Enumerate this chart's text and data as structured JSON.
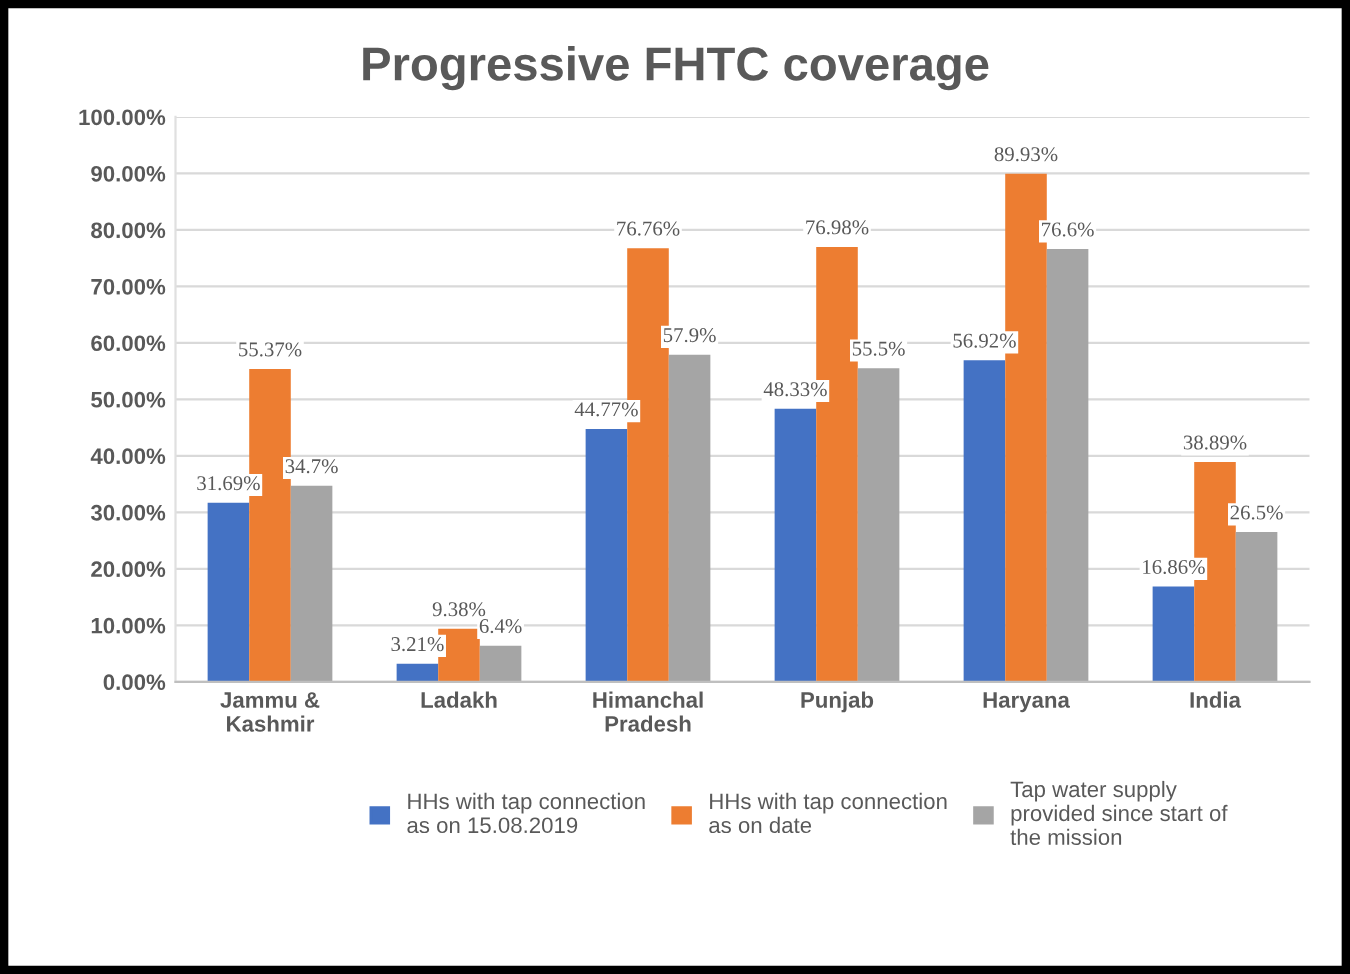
{
  "chart_data": {
    "type": "bar",
    "title": "Progressive FHTC coverage",
    "categories": [
      "Jammu & Kashmir",
      "Ladakh",
      "Himanchal Pradesh",
      "Punjab",
      "Haryana",
      "India"
    ],
    "series": [
      {
        "name": "HHs with tap connection as on 15.08.2019",
        "color": "#4472c4",
        "values": [
          31.69,
          3.21,
          44.77,
          48.33,
          56.92,
          16.86
        ],
        "value_labels": [
          "31.69%",
          "3.21%",
          "44.77%",
          "48.33%",
          "56.92%",
          "16.86%"
        ]
      },
      {
        "name": "HHs with tap connection as on date",
        "color": "#ed7d31",
        "values": [
          55.37,
          9.38,
          76.76,
          76.98,
          89.93,
          38.89
        ],
        "value_labels": [
          "55.37%",
          "9.38%",
          "76.76%",
          "76.98%",
          "89.93%",
          "38.89%"
        ]
      },
      {
        "name": "Tap water supply provided since start of the mission",
        "color": "#a5a5a5",
        "values": [
          34.7,
          6.4,
          57.9,
          55.5,
          76.6,
          26.5
        ],
        "value_labels": [
          "34.7%",
          "6.4%",
          "57.9%",
          "55.5%",
          "76.6%",
          "26.5%"
        ]
      }
    ],
    "ylim": [
      0,
      100
    ],
    "yticks": [
      {
        "value": 0,
        "label": "0.00%"
      },
      {
        "value": 10,
        "label": "10.00%"
      },
      {
        "value": 20,
        "label": "20.00%"
      },
      {
        "value": 30,
        "label": "30.00%"
      },
      {
        "value": 40,
        "label": "40.00%"
      },
      {
        "value": 50,
        "label": "50.00%"
      },
      {
        "value": 60,
        "label": "60.00%"
      },
      {
        "value": 70,
        "label": "70.00%"
      },
      {
        "value": 80,
        "label": "80.00%"
      },
      {
        "value": 90,
        "label": "90.00%"
      },
      {
        "value": 100,
        "label": "100.00%"
      }
    ],
    "grid": "y",
    "legend": "bottom"
  }
}
